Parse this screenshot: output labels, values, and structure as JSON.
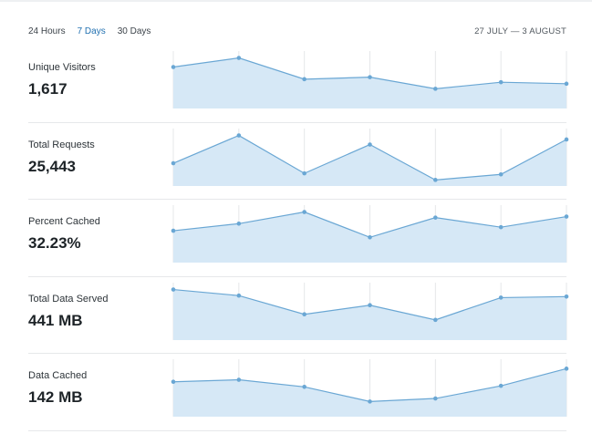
{
  "range": {
    "tabs": [
      {
        "label": "24 Hours",
        "active": false
      },
      {
        "label": "7 Days",
        "active": true
      },
      {
        "label": "30 Days",
        "active": false
      }
    ],
    "date_range": "27 JULY — 3 AUGUST"
  },
  "colors": {
    "accent": "#2271b1",
    "line": "#6aa7d4",
    "fill": "#d6e8f6",
    "grid": "#e5e7e9"
  },
  "stats": [
    {
      "label": "Unique Visitors",
      "value": "1,617"
    },
    {
      "label": "Total Requests",
      "value": "25,443"
    },
    {
      "label": "Percent Cached",
      "value": "32.23%"
    },
    {
      "label": "Total Data Served",
      "value": "441 MB"
    },
    {
      "label": "Data Cached",
      "value": "142 MB"
    }
  ],
  "chart_data": [
    {
      "type": "area",
      "series": [
        {
          "values": [
            0.82,
            1.0,
            0.58,
            0.62,
            0.39,
            0.52,
            0.49
          ]
        }
      ],
      "ylim": [
        0,
        1.1
      ]
    },
    {
      "type": "area",
      "series": [
        {
          "values": [
            0.45,
            1.0,
            0.25,
            0.82,
            0.12,
            0.23,
            0.92
          ]
        }
      ],
      "ylim": [
        0,
        1.1
      ]
    },
    {
      "type": "area",
      "series": [
        {
          "values": [
            0.63,
            0.77,
            1.0,
            0.5,
            0.89,
            0.7,
            0.91
          ]
        }
      ],
      "ylim": [
        0,
        1.1
      ]
    },
    {
      "type": "area",
      "series": [
        {
          "values": [
            1.0,
            0.88,
            0.51,
            0.69,
            0.4,
            0.84,
            0.86
          ]
        }
      ],
      "ylim": [
        0,
        1.1
      ]
    },
    {
      "type": "area",
      "series": [
        {
          "values": [
            0.69,
            0.73,
            0.59,
            0.3,
            0.36,
            0.61,
            0.95
          ]
        }
      ],
      "ylim": [
        0,
        1.1
      ]
    }
  ]
}
